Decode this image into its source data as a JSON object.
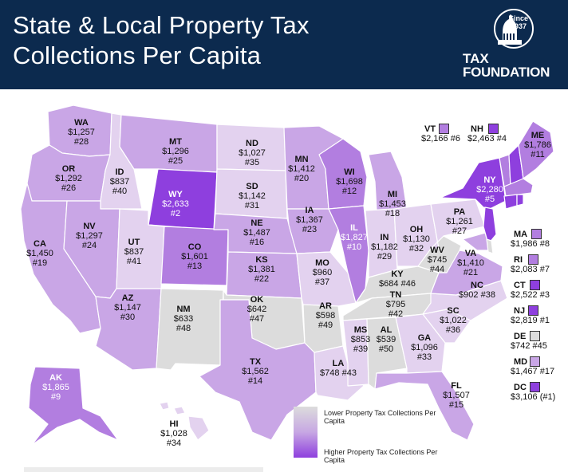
{
  "header": {
    "title_line1": "State & Local Property Tax",
    "title_line2": "Collections Per Capita",
    "logo": {
      "since": "Since",
      "year": "1937",
      "tax": "TAX",
      "foundation": "FOUNDATION"
    }
  },
  "colors": {
    "header_bg": "#0c2a4e",
    "lowest": "#dcdcdc",
    "low": "#e3d2ef",
    "mid": "#c9a6e6",
    "high": "#b27ee0",
    "highest": "#8e3fde",
    "border": "#ffffff"
  },
  "legend": {
    "low_label": "Lower Property Tax Collections Per Capita",
    "high_label": "Higher Property Tax Collections Per Capita"
  },
  "states": [
    {
      "abbr": "WA",
      "value": "$1,257",
      "rank": "#28"
    },
    {
      "abbr": "OR",
      "value": "$1,292",
      "rank": "#26"
    },
    {
      "abbr": "CA",
      "value": "$1,450",
      "rank": "#19"
    },
    {
      "abbr": "ID",
      "value": "$837",
      "rank": "#40"
    },
    {
      "abbr": "NV",
      "value": "$1,297",
      "rank": "#24"
    },
    {
      "abbr": "MT",
      "value": "$1,296",
      "rank": "#25"
    },
    {
      "abbr": "WY",
      "value": "$2,633",
      "rank": "#2"
    },
    {
      "abbr": "UT",
      "value": "$837",
      "rank": "#41"
    },
    {
      "abbr": "AZ",
      "value": "$1,147",
      "rank": "#30"
    },
    {
      "abbr": "CO",
      "value": "$1,601",
      "rank": "#13"
    },
    {
      "abbr": "NM",
      "value": "$633",
      "rank": "#48"
    },
    {
      "abbr": "ND",
      "value": "$1,027",
      "rank": "#35"
    },
    {
      "abbr": "SD",
      "value": "$1,142",
      "rank": "#31"
    },
    {
      "abbr": "NE",
      "value": "$1,487",
      "rank": "#16"
    },
    {
      "abbr": "KS",
      "value": "$1,381",
      "rank": "#22"
    },
    {
      "abbr": "OK",
      "value": "$642",
      "rank": "#47"
    },
    {
      "abbr": "TX",
      "value": "$1,562",
      "rank": "#14"
    },
    {
      "abbr": "MN",
      "value": "$1,412",
      "rank": "#20"
    },
    {
      "abbr": "IA",
      "value": "$1,367",
      "rank": "#23"
    },
    {
      "abbr": "MO",
      "value": "$960",
      "rank": "#37"
    },
    {
      "abbr": "AR",
      "value": "$598",
      "rank": "#49"
    },
    {
      "abbr": "LA",
      "value": "$748",
      "rank": "#43"
    },
    {
      "abbr": "WI",
      "value": "$1,698",
      "rank": "#12"
    },
    {
      "abbr": "IL",
      "value": "$1,827",
      "rank": "#10"
    },
    {
      "abbr": "MI",
      "value": "$1,453",
      "rank": "#18"
    },
    {
      "abbr": "IN",
      "value": "$1,182",
      "rank": "#29"
    },
    {
      "abbr": "OH",
      "value": "$1,130",
      "rank": "#32"
    },
    {
      "abbr": "KY",
      "value": "$684",
      "rank": "#46"
    },
    {
      "abbr": "TN",
      "value": "$795",
      "rank": "#42"
    },
    {
      "abbr": "MS",
      "value": "$853",
      "rank": "#39"
    },
    {
      "abbr": "AL",
      "value": "$539",
      "rank": "#50"
    },
    {
      "abbr": "GA",
      "value": "$1,096",
      "rank": "#33"
    },
    {
      "abbr": "FL",
      "value": "$1,507",
      "rank": "#15"
    },
    {
      "abbr": "SC",
      "value": "$1,022",
      "rank": "#36"
    },
    {
      "abbr": "NC",
      "value": "$902",
      "rank": "#38"
    },
    {
      "abbr": "VA",
      "value": "$1,410",
      "rank": "#21"
    },
    {
      "abbr": "WV",
      "value": "$745",
      "rank": "#44"
    },
    {
      "abbr": "PA",
      "value": "$1,261",
      "rank": "#27"
    },
    {
      "abbr": "NY",
      "value": "$2,280",
      "rank": "#5"
    },
    {
      "abbr": "ME",
      "value": "$1,786",
      "rank": "#11"
    },
    {
      "abbr": "AK",
      "value": "$1,865",
      "rank": "#9"
    },
    {
      "abbr": "HI",
      "value": "$1,028",
      "rank": "#34"
    }
  ],
  "side_states": [
    {
      "abbr": "VT",
      "value": "$2,166",
      "rank": "#6"
    },
    {
      "abbr": "NH",
      "value": "$2,463",
      "rank": "#4"
    },
    {
      "abbr": "MA",
      "value": "$1,986",
      "rank": "#8"
    },
    {
      "abbr": "RI",
      "value": "$2,083",
      "rank": "#7"
    },
    {
      "abbr": "CT",
      "value": "$2,522",
      "rank": "#3"
    },
    {
      "abbr": "NJ",
      "value": "$2,819",
      "rank": "#1"
    },
    {
      "abbr": "DE",
      "value": "$742",
      "rank": "#45"
    },
    {
      "abbr": "MD",
      "value": "$1,467",
      "rank": "#17"
    },
    {
      "abbr": "DC",
      "value": "$3,106",
      "rank": "(#1)"
    }
  ]
}
